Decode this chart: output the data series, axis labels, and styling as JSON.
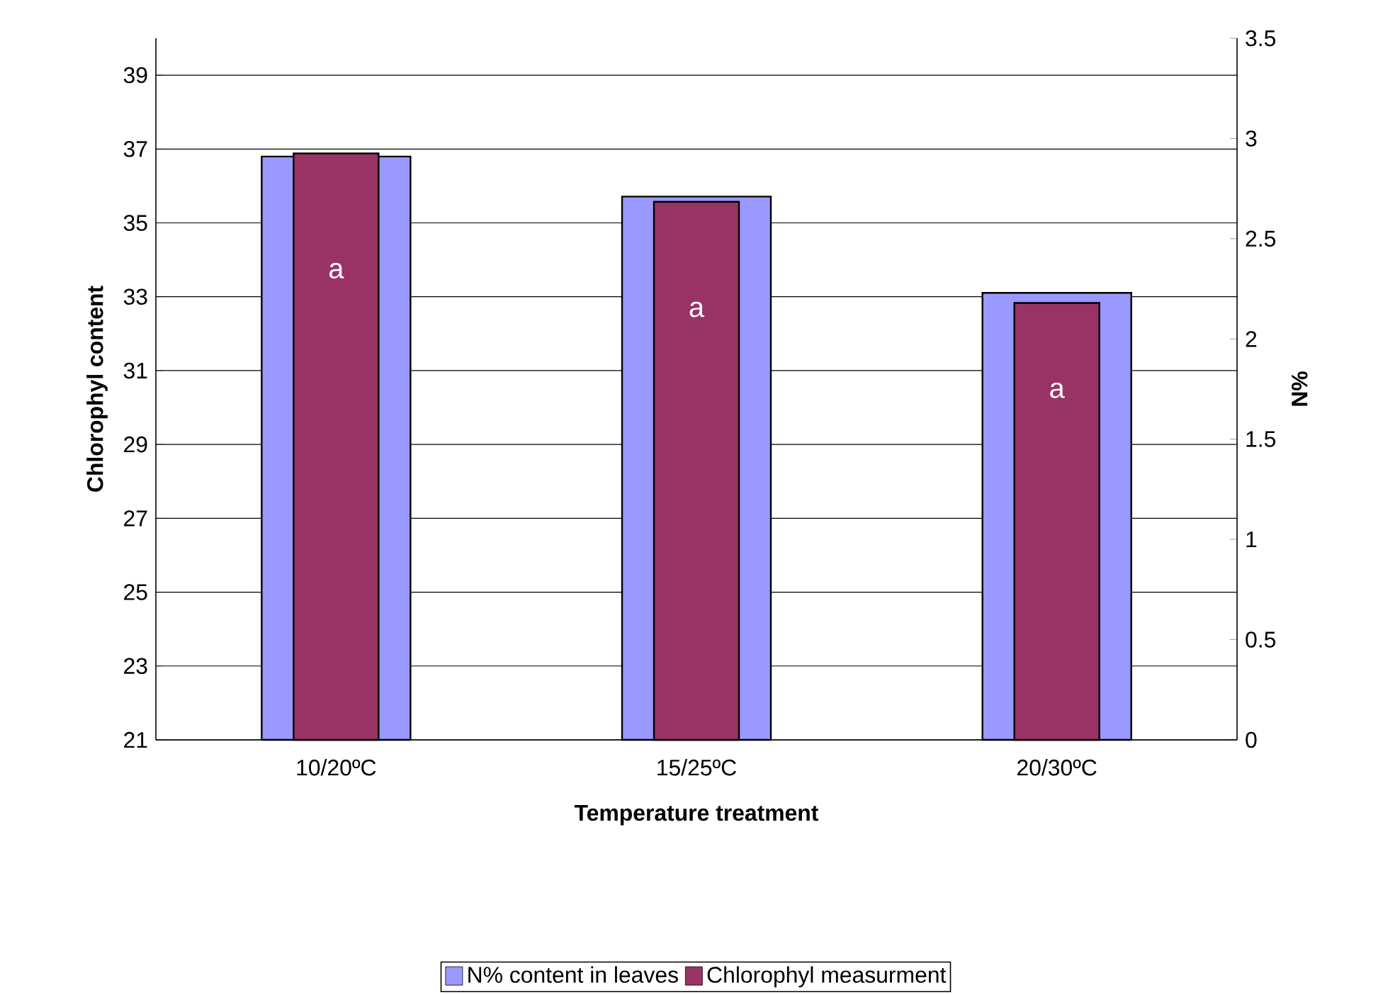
{
  "chart_data": {
    "type": "bar",
    "xlabel": "Temperature treatment",
    "ylabel": "Chlorophyl content",
    "y2label": "N%",
    "categories": [
      "10/20ºC",
      "15/25ºC",
      "20/30ºC"
    ],
    "series": [
      {
        "name": "N% content in leaves",
        "color": "#9999ff",
        "values": [
          2.91,
          2.71,
          2.23
        ],
        "axis": "y2"
      },
      {
        "name": "Chlorophyl measurment",
        "color": "#993366",
        "values": [
          36.88,
          35.57,
          32.83
        ]
      }
    ],
    "ylim": [
      21,
      40
    ],
    "yticks": [
      21,
      23,
      25,
      27,
      29,
      31,
      33,
      35,
      37,
      39
    ],
    "y2lim": [
      0,
      3.5
    ],
    "y2ticks": [
      0,
      0.5,
      1,
      1.5,
      2,
      2.5,
      3,
      3.5
    ],
    "grid": "y",
    "legend": "bottom",
    "annotations": [
      "a",
      "a",
      "a"
    ]
  }
}
